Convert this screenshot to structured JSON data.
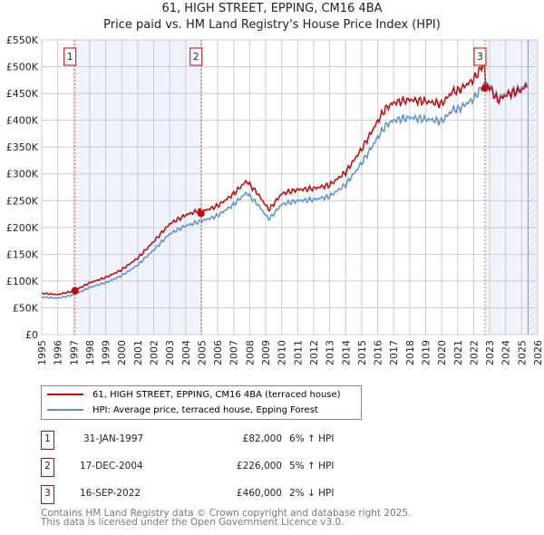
{
  "chart_data": {
    "type": "line",
    "title": "61, HIGH STREET, EPPING, CM16 4BA",
    "subtitle": "Price paid vs. HM Land Registry's House Price Index (HPI)",
    "xlim": [
      1995,
      2026
    ],
    "ylim": [
      0,
      550000
    ],
    "x_ticks": [
      "1995",
      "1996",
      "1997",
      "1998",
      "1999",
      "2000",
      "2001",
      "2002",
      "2003",
      "2004",
      "2005",
      "2006",
      "2007",
      "2008",
      "2009",
      "2010",
      "2011",
      "2012",
      "2013",
      "2014",
      "2015",
      "2016",
      "2017",
      "2018",
      "2019",
      "2020",
      "2021",
      "2022",
      "2023",
      "2024",
      "2025",
      "2026"
    ],
    "y_ticks": [
      {
        "v": 0,
        "label": "£0"
      },
      {
        "v": 50000,
        "label": "£50K"
      },
      {
        "v": 100000,
        "label": "£100K"
      },
      {
        "v": 150000,
        "label": "£150K"
      },
      {
        "v": 200000,
        "label": "£200K"
      },
      {
        "v": 250000,
        "label": "£250K"
      },
      {
        "v": 300000,
        "label": "£300K"
      },
      {
        "v": 350000,
        "label": "£350K"
      },
      {
        "v": 400000,
        "label": "£400K"
      },
      {
        "v": 450000,
        "label": "£450K"
      },
      {
        "v": 500000,
        "label": "£500K"
      },
      {
        "v": 550000,
        "label": "£550K"
      }
    ],
    "grid": true,
    "series": [
      {
        "name": "61, HIGH STREET, EPPING, CM16 4BA (terraced house)",
        "color": "#cc0000"
      },
      {
        "name": "HPI: Average price, terraced house, Epping Forest",
        "color": "#5b8fd6",
        "points": [
          [
            1995,
            70000
          ],
          [
            1996,
            68000
          ],
          [
            1997,
            74000
          ],
          [
            1998,
            88000
          ],
          [
            1999,
            97000
          ],
          [
            2000,
            110000
          ],
          [
            2001,
            130000
          ],
          [
            2002,
            158000
          ],
          [
            2003,
            188000
          ],
          [
            2004,
            203000
          ],
          [
            2005,
            212000
          ],
          [
            2006,
            222000
          ],
          [
            2007,
            243000
          ],
          [
            2007.8,
            265000
          ],
          [
            2008.5,
            243000
          ],
          [
            2009.2,
            215000
          ],
          [
            2010,
            243000
          ],
          [
            2011,
            250000
          ],
          [
            2012,
            252000
          ],
          [
            2013,
            258000
          ],
          [
            2014,
            280000
          ],
          [
            2015,
            320000
          ],
          [
            2016,
            368000
          ],
          [
            2016.5,
            390000
          ],
          [
            2017,
            400000
          ],
          [
            2018,
            405000
          ],
          [
            2019,
            402000
          ],
          [
            2020,
            398000
          ],
          [
            2020.7,
            420000
          ],
          [
            2021,
            420000
          ],
          [
            2022,
            440000
          ],
          [
            2022.7,
            470000
          ],
          [
            2023,
            465000
          ],
          [
            2023.5,
            440000
          ],
          [
            2024,
            450000
          ],
          [
            2025,
            460000
          ],
          [
            2025.4,
            470000
          ]
        ]
      }
    ],
    "sales": [
      {
        "n": "1",
        "x": 1997.08,
        "date": "31-JAN-1997",
        "price": 82000,
        "price_label": "£82,000",
        "hpi": "6% ↑ HPI"
      },
      {
        "n": "2",
        "x": 2004.96,
        "date": "17-DEC-2004",
        "price": 226000,
        "price_label": "£226,000",
        "hpi": "5% ↑ HPI"
      },
      {
        "n": "3",
        "x": 2022.71,
        "date": "16-SEP-2022",
        "price": 460000,
        "price_label": "£460,000",
        "hpi": "2% ↓ HPI"
      }
    ]
  },
  "footer": [
    "Contains HM Land Registry data © Crown copyright and database right 2025.",
    "This data is licensed under the Open Government Licence v3.0."
  ]
}
